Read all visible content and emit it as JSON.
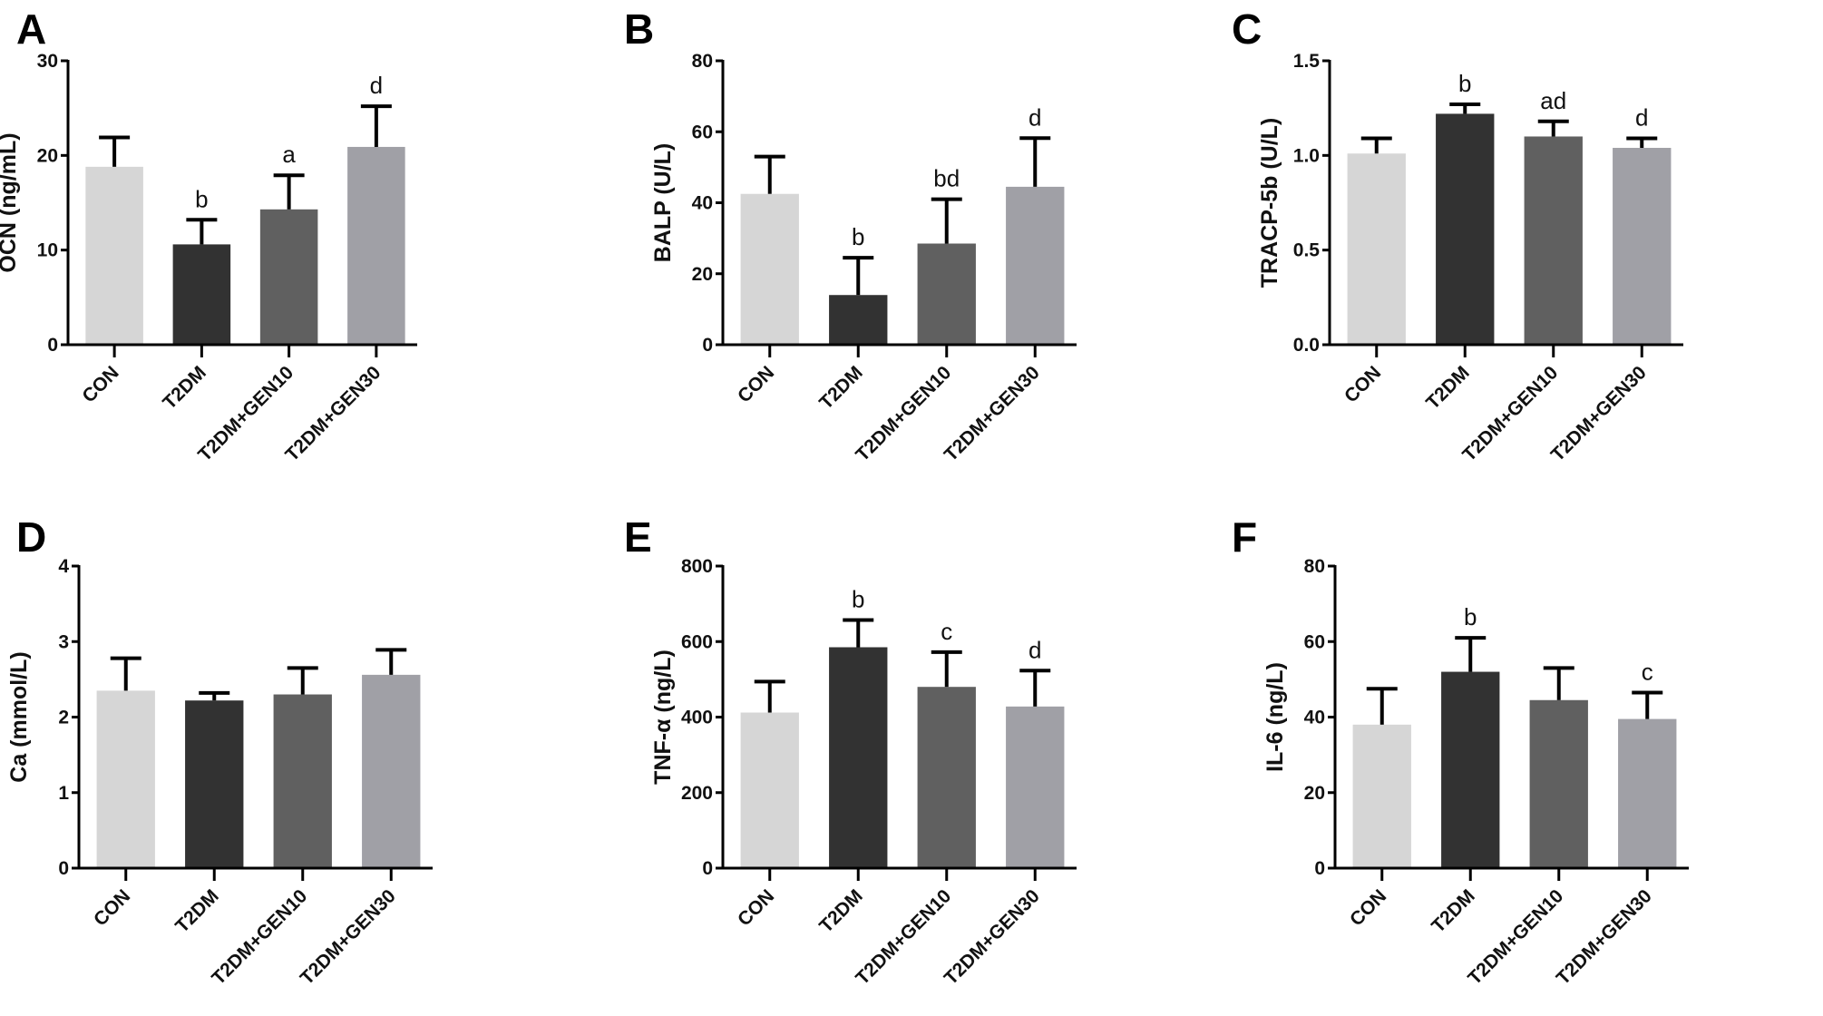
{
  "colors": [
    "#d6d6d6",
    "#323232",
    "#606060",
    "#a0a0a6"
  ],
  "chart_data": [
    {
      "type": "bar",
      "panel": "A",
      "ylabel": "OCN (ng/mL)",
      "ylim": [
        0,
        30
      ],
      "ticks": [
        "0",
        "10",
        "20",
        "30"
      ],
      "tickvals": [
        0,
        10,
        20,
        30
      ],
      "categories": [
        "CON",
        "T2DM",
        "T2DM+GEN10",
        "T2DM+GEN30"
      ],
      "values": [
        18.8,
        10.6,
        14.3,
        20.9
      ],
      "errors": [
        3.1,
        2.6,
        3.6,
        4.3
      ],
      "annotations": [
        "",
        "b",
        "a",
        "d"
      ]
    },
    {
      "type": "bar",
      "panel": "B",
      "ylabel": "BALP (U/L)",
      "ylim": [
        0,
        80
      ],
      "ticks": [
        "0",
        "20",
        "40",
        "60",
        "80"
      ],
      "tickvals": [
        0,
        20,
        40,
        60,
        80
      ],
      "categories": [
        "CON",
        "T2DM",
        "T2DM+GEN10",
        "T2DM+GEN30"
      ],
      "values": [
        42.5,
        14,
        28.5,
        44.5
      ],
      "errors": [
        10.5,
        10.5,
        12.5,
        13.7
      ],
      "annotations": [
        "",
        "b",
        "bd",
        "d"
      ]
    },
    {
      "type": "bar",
      "panel": "C",
      "ylabel": "TRACP-5b (U/L)",
      "ylim": [
        0,
        1.5
      ],
      "ticks": [
        "0.0",
        "0.5",
        "1.0",
        "1.5"
      ],
      "tickvals": [
        0,
        0.5,
        1.0,
        1.5
      ],
      "categories": [
        "CON",
        "T2DM",
        "T2DM+GEN10",
        "T2DM+GEN30"
      ],
      "values": [
        1.01,
        1.22,
        1.1,
        1.04
      ],
      "errors": [
        0.08,
        0.05,
        0.08,
        0.05
      ],
      "annotations": [
        "",
        "b",
        "ad",
        "d"
      ]
    },
    {
      "type": "bar",
      "panel": "D",
      "ylabel": "Ca (mmol/L)",
      "ylim": [
        0,
        4
      ],
      "ticks": [
        "0",
        "1",
        "2",
        "3",
        "4"
      ],
      "tickvals": [
        0,
        1,
        2,
        3,
        4
      ],
      "categories": [
        "CON",
        "T2DM",
        "T2DM+GEN10",
        "T2DM+GEN30"
      ],
      "values": [
        2.35,
        2.22,
        2.3,
        2.56
      ],
      "errors": [
        0.43,
        0.1,
        0.35,
        0.33
      ],
      "annotations": [
        "",
        "",
        "",
        ""
      ]
    },
    {
      "type": "bar",
      "panel": "E",
      "ylabel": "TNF-α (ng/L)",
      "ylim": [
        0,
        800
      ],
      "ticks": [
        "0",
        "200",
        "400",
        "600",
        "800"
      ],
      "tickvals": [
        0,
        200,
        400,
        600,
        800
      ],
      "categories": [
        "CON",
        "T2DM",
        "T2DM+GEN10",
        "T2DM+GEN30"
      ],
      "values": [
        412,
        585,
        480,
        428
      ],
      "errors": [
        82,
        72,
        92,
        95
      ],
      "annotations": [
        "",
        "b",
        "c",
        "d"
      ]
    },
    {
      "type": "bar",
      "panel": "F",
      "ylabel": "IL-6 (ng/L)",
      "ylim": [
        0,
        80
      ],
      "ticks": [
        "0",
        "20",
        "40",
        "60",
        "80"
      ],
      "tickvals": [
        0,
        20,
        40,
        60,
        80
      ],
      "categories": [
        "CON",
        "T2DM",
        "T2DM+GEN10",
        "T2DM+GEN30"
      ],
      "values": [
        38,
        52,
        44.5,
        39.5
      ],
      "errors": [
        9.5,
        9,
        8.5,
        7
      ],
      "annotations": [
        "",
        "b",
        "",
        "c"
      ]
    }
  ]
}
